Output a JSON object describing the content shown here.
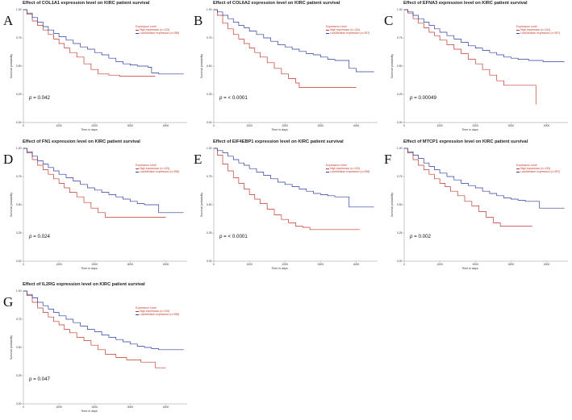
{
  "chart_data": [
    {
      "letter": "A",
      "gene": "COL1A1",
      "title": "Effect of COL1A1 expression level on KIRC patient survival",
      "type": "line",
      "xlabel": "Time in days",
      "ylabel": "Survival probability",
      "xlim": [
        0,
        4600
      ],
      "ylim": [
        0,
        1
      ],
      "xticks": [
        0,
        1000,
        2000,
        3000,
        4000
      ],
      "yticks": [
        "0.00",
        "0.25",
        "0.50",
        "0.75",
        "1.00"
      ],
      "legend_title": "Expression Level",
      "legend": [
        "High expression (n=133)",
        "Low/Medium expression (n=398)"
      ],
      "p_value": "0.042",
      "series": [
        {
          "name": "High expression",
          "color": "#c0392b",
          "x": [
            0,
            100,
            250,
            400,
            550,
            700,
            850,
            1000,
            1150,
            1300,
            1500,
            1700,
            1900,
            2100,
            2400,
            2700,
            3000,
            3300,
            3700
          ],
          "y": [
            1,
            0.96,
            0.9,
            0.86,
            0.82,
            0.78,
            0.74,
            0.7,
            0.66,
            0.62,
            0.58,
            0.52,
            0.47,
            0.43,
            0.42,
            0.41,
            0.41,
            0.41,
            0.41
          ]
        },
        {
          "name": "Low/Medium expression",
          "color": "#2c3e9e",
          "x": [
            0,
            100,
            250,
            400,
            550,
            700,
            850,
            1000,
            1200,
            1400,
            1600,
            1800,
            2000,
            2200,
            2400,
            2600,
            2800,
            3000,
            3200,
            3500,
            3600,
            3800,
            4000,
            4500
          ],
          "y": [
            1,
            0.97,
            0.93,
            0.89,
            0.85,
            0.82,
            0.79,
            0.76,
            0.73,
            0.7,
            0.67,
            0.65,
            0.62,
            0.6,
            0.57,
            0.54,
            0.52,
            0.51,
            0.5,
            0.49,
            0.44,
            0.43,
            0.43,
            0.43
          ]
        }
      ]
    },
    {
      "letter": "B",
      "gene": "COL6A2",
      "title": "Effect of COL6A2 expression level on KIRC patient survival",
      "type": "line",
      "xlabel": "Time in days",
      "ylabel": "Survival probability",
      "xlim": [
        0,
        4600
      ],
      "ylim": [
        0,
        1
      ],
      "xticks": [
        0,
        1000,
        2000,
        3000,
        4000
      ],
      "yticks": [
        "0.00",
        "0.25",
        "0.50",
        "0.75",
        "1.00"
      ],
      "legend_title": "Expression Level",
      "legend": [
        "High expression (n=134)",
        "Low/Medium expression (n=397)"
      ],
      "p_value": "< 0.0001",
      "series": [
        {
          "name": "High expression",
          "color": "#c0392b",
          "x": [
            0,
            100,
            250,
            400,
            550,
            700,
            850,
            1000,
            1150,
            1300,
            1500,
            1700,
            1900,
            2100,
            2300,
            2400,
            2700,
            3000,
            3300,
            3700,
            4000
          ],
          "y": [
            1,
            0.95,
            0.88,
            0.83,
            0.78,
            0.74,
            0.7,
            0.66,
            0.62,
            0.58,
            0.53,
            0.48,
            0.43,
            0.39,
            0.35,
            0.31,
            0.31,
            0.31,
            0.31,
            0.31,
            0.31
          ]
        },
        {
          "name": "Low/Medium expression",
          "color": "#2c3e9e",
          "x": [
            0,
            100,
            250,
            400,
            550,
            700,
            850,
            1000,
            1200,
            1400,
            1600,
            1800,
            2000,
            2200,
            2400,
            2600,
            2800,
            3000,
            3200,
            3400,
            3600,
            3800,
            4000,
            4500
          ],
          "y": [
            1,
            0.98,
            0.95,
            0.92,
            0.89,
            0.86,
            0.84,
            0.81,
            0.78,
            0.75,
            0.72,
            0.69,
            0.67,
            0.65,
            0.63,
            0.61,
            0.6,
            0.58,
            0.56,
            0.55,
            0.55,
            0.48,
            0.45,
            0.45
          ]
        }
      ]
    },
    {
      "letter": "C",
      "gene": "EFNA3",
      "title": "Effect of EFNA3 expression level on KIRC patient survival",
      "type": "line",
      "xlabel": "Time in days",
      "ylabel": "Survival probability",
      "xlim": [
        0,
        4600
      ],
      "ylim": [
        0,
        1
      ],
      "xticks": [
        0,
        1000,
        2000,
        3000,
        4000
      ],
      "yticks": [
        "0.00",
        "0.25",
        "0.50",
        "0.75",
        "1.00"
      ],
      "legend_title": "Expression Level",
      "legend": [
        "High expression (n=134)",
        "Low/Medium expression (n=397)"
      ],
      "p_value": "0.00049",
      "series": [
        {
          "name": "High expression",
          "color": "#c0392b",
          "x": [
            0,
            100,
            250,
            400,
            550,
            700,
            850,
            1000,
            1200,
            1400,
            1600,
            1800,
            2000,
            2200,
            2400,
            2600,
            2800,
            3000,
            3300,
            3600,
            3700
          ],
          "y": [
            1,
            0.97,
            0.92,
            0.88,
            0.84,
            0.8,
            0.77,
            0.73,
            0.69,
            0.65,
            0.61,
            0.56,
            0.52,
            0.47,
            0.42,
            0.37,
            0.33,
            0.33,
            0.33,
            0.33,
            0.16
          ]
        },
        {
          "name": "Low/Medium expression",
          "color": "#2c3e9e",
          "x": [
            0,
            100,
            250,
            400,
            550,
            700,
            850,
            1000,
            1200,
            1400,
            1600,
            1800,
            2000,
            2200,
            2400,
            2600,
            2800,
            3000,
            3200,
            3500,
            3700,
            3900,
            4200,
            4500
          ],
          "y": [
            1,
            0.98,
            0.95,
            0.92,
            0.89,
            0.86,
            0.83,
            0.8,
            0.77,
            0.74,
            0.71,
            0.68,
            0.66,
            0.64,
            0.62,
            0.6,
            0.58,
            0.57,
            0.56,
            0.55,
            0.55,
            0.54,
            0.54,
            0.54
          ]
        }
      ]
    },
    {
      "letter": "D",
      "gene": "FN1",
      "title": "Effect of FN1 expression level on KIRC patient survival",
      "type": "line",
      "xlabel": "Time in days",
      "ylabel": "Survival probability",
      "xlim": [
        0,
        4600
      ],
      "ylim": [
        0,
        1
      ],
      "xticks": [
        0,
        1000,
        2000,
        3000,
        4000
      ],
      "yticks": [
        "0.00",
        "0.25",
        "0.50",
        "0.75",
        "1.00"
      ],
      "legend_title": "Expression Level",
      "legend": [
        "High expression (n=133)",
        "Low/Medium expression (n=398)"
      ],
      "p_value": "0.024",
      "series": [
        {
          "name": "High expression",
          "color": "#c0392b",
          "x": [
            0,
            100,
            250,
            400,
            550,
            700,
            850,
            1000,
            1150,
            1300,
            1500,
            1700,
            1900,
            2100,
            2300,
            2600,
            2900,
            3200,
            3600,
            4000
          ],
          "y": [
            1,
            0.96,
            0.9,
            0.85,
            0.81,
            0.77,
            0.73,
            0.69,
            0.65,
            0.61,
            0.57,
            0.52,
            0.47,
            0.43,
            0.39,
            0.39,
            0.39,
            0.39,
            0.39,
            0.39
          ]
        },
        {
          "name": "Low/Medium expression",
          "color": "#2c3e9e",
          "x": [
            0,
            100,
            250,
            400,
            550,
            700,
            850,
            1000,
            1200,
            1400,
            1600,
            1800,
            2000,
            2200,
            2400,
            2600,
            2800,
            3000,
            3200,
            3400,
            3600,
            3800,
            4000,
            4500
          ],
          "y": [
            1,
            0.97,
            0.93,
            0.89,
            0.86,
            0.83,
            0.8,
            0.77,
            0.74,
            0.71,
            0.68,
            0.65,
            0.63,
            0.61,
            0.59,
            0.57,
            0.55,
            0.53,
            0.51,
            0.5,
            0.5,
            0.43,
            0.43,
            0.43
          ]
        }
      ]
    },
    {
      "letter": "E",
      "gene": "EIF4EBP1",
      "title": "Effect of EIF4EBP1 expression level on KIRC patient survival",
      "type": "line",
      "xlabel": "Time in days",
      "ylabel": "Survival probability",
      "xlim": [
        0,
        4600
      ],
      "ylim": [
        0,
        1
      ],
      "xticks": [
        0,
        1000,
        2000,
        3000,
        4000
      ],
      "yticks": [
        "0.00",
        "0.25",
        "0.50",
        "0.75",
        "1.00"
      ],
      "legend_title": "Expression Level",
      "legend": [
        "High expression (n=133)",
        "Low/Medium expression (n=398)"
      ],
      "p_value": "< 0.0001",
      "series": [
        {
          "name": "High expression",
          "color": "#c0392b",
          "x": [
            0,
            100,
            250,
            400,
            550,
            700,
            850,
            1000,
            1150,
            1300,
            1500,
            1700,
            1900,
            2100,
            2300,
            2500,
            2700,
            3000,
            3400,
            3800,
            4100
          ],
          "y": [
            1,
            0.94,
            0.86,
            0.8,
            0.74,
            0.69,
            0.64,
            0.59,
            0.55,
            0.51,
            0.46,
            0.41,
            0.37,
            0.34,
            0.31,
            0.3,
            0.28,
            0.28,
            0.28,
            0.28,
            0.28
          ]
        },
        {
          "name": "Low/Medium expression",
          "color": "#2c3e9e",
          "x": [
            0,
            100,
            250,
            400,
            550,
            700,
            850,
            1000,
            1200,
            1400,
            1600,
            1800,
            2000,
            2200,
            2400,
            2600,
            2800,
            3000,
            3200,
            3400,
            3600,
            3800,
            4000,
            4500
          ],
          "y": [
            1,
            0.98,
            0.96,
            0.93,
            0.9,
            0.87,
            0.85,
            0.82,
            0.79,
            0.76,
            0.73,
            0.7,
            0.68,
            0.66,
            0.64,
            0.62,
            0.6,
            0.59,
            0.58,
            0.57,
            0.57,
            0.48,
            0.48,
            0.48
          ]
        }
      ]
    },
    {
      "letter": "F",
      "gene": "MTCP1",
      "title": "Effect of MTCP1 expression level on KIRC patient survival",
      "type": "line",
      "xlabel": "Time in days",
      "ylabel": "Survival probability",
      "xlim": [
        0,
        4600
      ],
      "ylim": [
        0,
        1
      ],
      "xticks": [
        0,
        1000,
        2000,
        3000,
        4000
      ],
      "yticks": [
        "0.00",
        "0.25",
        "0.50",
        "0.75",
        "1.00"
      ],
      "legend_title": "Expression Level",
      "legend": [
        "High expression (n=133)",
        "Low/Medium expression (n=397)"
      ],
      "p_value": "0.002",
      "series": [
        {
          "name": "High expression",
          "color": "#c0392b",
          "x": [
            0,
            100,
            250,
            400,
            550,
            700,
            850,
            1000,
            1150,
            1300,
            1500,
            1700,
            1900,
            2100,
            2300,
            2500,
            2700,
            2900,
            3200,
            3600
          ],
          "y": [
            1,
            0.96,
            0.9,
            0.85,
            0.81,
            0.77,
            0.73,
            0.69,
            0.66,
            0.62,
            0.58,
            0.53,
            0.49,
            0.44,
            0.39,
            0.34,
            0.31,
            0.31,
            0.31,
            0.31
          ]
        },
        {
          "name": "Low/Medium expression",
          "color": "#2c3e9e",
          "x": [
            0,
            100,
            250,
            400,
            550,
            700,
            850,
            1000,
            1200,
            1400,
            1600,
            1800,
            2000,
            2200,
            2400,
            2600,
            2800,
            3000,
            3200,
            3400,
            3600,
            3800,
            4000,
            4500
          ],
          "y": [
            1,
            0.97,
            0.94,
            0.91,
            0.87,
            0.84,
            0.81,
            0.78,
            0.75,
            0.72,
            0.69,
            0.67,
            0.65,
            0.62,
            0.6,
            0.58,
            0.56,
            0.55,
            0.54,
            0.53,
            0.53,
            0.47,
            0.47,
            0.47
          ]
        }
      ]
    },
    {
      "letter": "G",
      "gene": "IL2RG",
      "title": "Effect of IL2RG expression level on KIRC patient survival",
      "type": "line",
      "xlabel": "Time in days",
      "ylabel": "Survival probability",
      "xlim": [
        0,
        4600
      ],
      "ylim": [
        0,
        1
      ],
      "xticks": [
        0,
        1000,
        2000,
        3000,
        4000
      ],
      "yticks": [
        "0.00",
        "0.25",
        "0.50",
        "0.75",
        "1.00"
      ],
      "legend_title": "Expression Level",
      "legend": [
        "High expression (n=133)",
        "Low/Medium expression (n=398)"
      ],
      "p_value": "0.047",
      "series": [
        {
          "name": "High expression",
          "color": "#c0392b",
          "x": [
            0,
            100,
            250,
            400,
            550,
            700,
            850,
            1000,
            1150,
            1300,
            1500,
            1700,
            1900,
            2100,
            2300,
            2600,
            2900,
            3300,
            3700,
            4000
          ],
          "y": [
            1,
            0.96,
            0.9,
            0.85,
            0.81,
            0.77,
            0.73,
            0.7,
            0.66,
            0.63,
            0.59,
            0.56,
            0.52,
            0.48,
            0.44,
            0.41,
            0.39,
            0.37,
            0.32,
            0.32
          ]
        },
        {
          "name": "Low/Medium expression",
          "color": "#2c3e9e",
          "x": [
            0,
            100,
            250,
            400,
            550,
            700,
            850,
            1000,
            1200,
            1400,
            1600,
            1800,
            2000,
            2200,
            2400,
            2600,
            2800,
            3000,
            3200,
            3400,
            3600,
            3800,
            4000,
            4500
          ],
          "y": [
            1,
            0.97,
            0.94,
            0.9,
            0.87,
            0.84,
            0.81,
            0.78,
            0.75,
            0.72,
            0.69,
            0.66,
            0.64,
            0.61,
            0.59,
            0.57,
            0.55,
            0.53,
            0.51,
            0.5,
            0.49,
            0.48,
            0.48,
            0.48
          ]
        }
      ]
    }
  ]
}
